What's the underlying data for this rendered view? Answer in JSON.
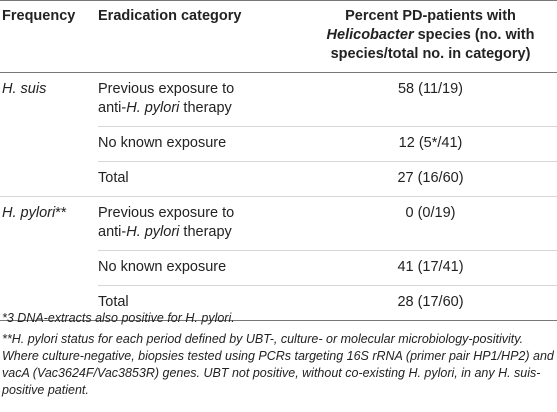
{
  "header": {
    "col1": "Frequency",
    "col2": "Eradication category",
    "col3_line1": "Percent PD-patients with",
    "col3_italic": "Helicobacter",
    "col3_line2_rest": " species (no. with",
    "col3_line3": "species/total no. in category)"
  },
  "rows": [
    {
      "frequency": "H. suis",
      "freq_suffix": "",
      "category_pre": "Previous exposure to",
      "category_pre2": "anti-",
      "category_italic": "H. pylori",
      "category_post": " therapy",
      "value": "58 (11/19)"
    },
    {
      "frequency": "",
      "category": "No known exposure",
      "value": "12 (5*/41)"
    },
    {
      "frequency": "",
      "category": "Total",
      "value": "27 (16/60)"
    },
    {
      "frequency": "H. pylori",
      "freq_suffix": "**",
      "category_pre": "Previous exposure to",
      "category_pre2": "anti-",
      "category_italic": "H. pylori",
      "category_post": " therapy",
      "value": "0 (0/19)"
    },
    {
      "frequency": "",
      "category": "No known exposure",
      "value": "41 (17/41)"
    },
    {
      "frequency": "",
      "category": "Total",
      "value": "28 (17/60)"
    }
  ],
  "footnotes": [
    "*3 DNA-extracts also positive for H. pylori.",
    "**H. pylori status for each period defined by UBT-, culture- or molecular microbiology-positivity. Where culture-negative, biopsies tested using PCRs targeting 16S rRNA (primer pair HP1/HP2) and vacA (Vac3624F/Vac3853R) genes. UBT not positive, without co-existing H. pylori, in any H. suis-positive patient."
  ]
}
